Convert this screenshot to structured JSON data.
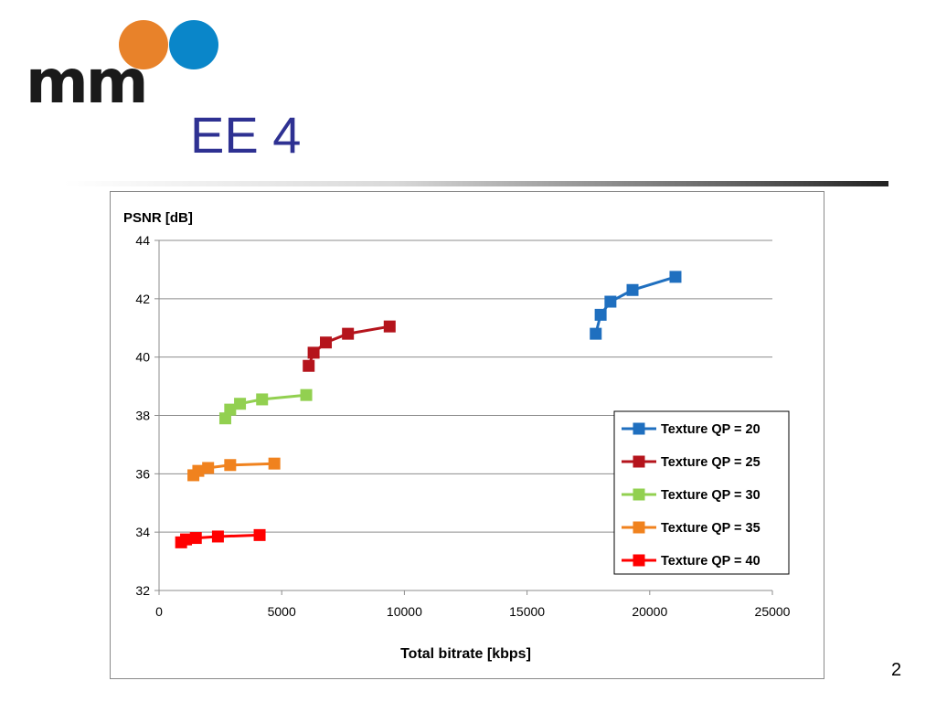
{
  "slide": {
    "logo_text": "mm",
    "title": "EE 4",
    "page_number": "2"
  },
  "colors": {
    "logo_orange": "#e8822a",
    "logo_blue": "#0a86c9",
    "title": "#2e3192"
  },
  "chart_data": {
    "type": "line",
    "title": "",
    "xlabel": "Total bitrate [kbps]",
    "ylabel": "PSNR [dB]",
    "xlim": [
      0,
      25000
    ],
    "ylim": [
      32,
      44
    ],
    "xticks": [
      0,
      5000,
      10000,
      15000,
      20000,
      25000
    ],
    "yticks": [
      32,
      34,
      36,
      38,
      40,
      42,
      44
    ],
    "grid": "horizontal",
    "legend_position": "bottom-right",
    "series": [
      {
        "name": "Texture QP = 20",
        "color": "#1f6fbf",
        "x": [
          17800,
          18000,
          18400,
          19300,
          21050
        ],
        "y": [
          40.8,
          41.45,
          41.9,
          42.3,
          42.75
        ]
      },
      {
        "name": "Texture QP = 25",
        "color": "#b5141c",
        "x": [
          6100,
          6300,
          6800,
          7700,
          9400
        ],
        "y": [
          39.7,
          40.15,
          40.5,
          40.8,
          41.05
        ]
      },
      {
        "name": "Texture QP = 30",
        "color": "#92d050",
        "x": [
          2700,
          2900,
          3300,
          4200,
          6000
        ],
        "y": [
          37.9,
          38.2,
          38.4,
          38.55,
          38.7
        ]
      },
      {
        "name": "Texture QP = 35",
        "color": "#f0821e",
        "x": [
          1400,
          1600,
          2000,
          2900,
          4700
        ],
        "y": [
          35.95,
          36.1,
          36.2,
          36.3,
          36.35
        ]
      },
      {
        "name": "Texture QP = 40",
        "color": "#ff0000",
        "x": [
          900,
          1100,
          1500,
          2400,
          4100
        ],
        "y": [
          33.65,
          33.75,
          33.8,
          33.85,
          33.9
        ]
      }
    ]
  }
}
